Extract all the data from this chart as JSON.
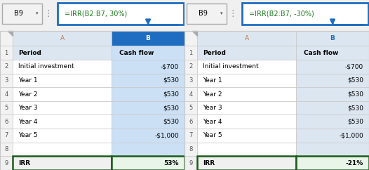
{
  "tables": [
    {
      "formula_cell": "B9",
      "formula": "=IRR(B2:B7, 30%)",
      "rows": [
        [
          "1",
          "Period",
          "Cash flow"
        ],
        [
          "2",
          "Initial investment",
          "-$700"
        ],
        [
          "3",
          "Year 1",
          "$530"
        ],
        [
          "4",
          "Year 2",
          "$530"
        ],
        [
          "5",
          "Year 3",
          "$530"
        ],
        [
          "6",
          "Year 4",
          "$530"
        ],
        [
          "7",
          "Year 5",
          "-$1,000"
        ],
        [
          "8",
          "",
          ""
        ],
        [
          "9",
          "IRR",
          "53%"
        ]
      ],
      "col_b_header_bg": "#1f6dc1",
      "col_b_header_fg": "#ffffff",
      "col_b_cell_bg": "#cce0f5",
      "col_a_header_fg": "#c0784a"
    },
    {
      "formula_cell": "B9",
      "formula": "=IRR(B2:B7, -30%)",
      "rows": [
        [
          "1",
          "Period",
          "Cash flow"
        ],
        [
          "2",
          "Initial investment",
          "-$700"
        ],
        [
          "3",
          "Year 1",
          "$530"
        ],
        [
          "4",
          "Year 2",
          "$530"
        ],
        [
          "5",
          "Year 3",
          "$530"
        ],
        [
          "6",
          "Year 4",
          "$530"
        ],
        [
          "7",
          "Year 5",
          "-$1,000"
        ],
        [
          "8",
          "",
          ""
        ],
        [
          "9",
          "IRR",
          "-21%"
        ]
      ],
      "col_b_header_bg": "#dce6f0",
      "col_b_header_fg": "#1f6dc1",
      "col_b_cell_bg": "#dce6f0",
      "col_a_header_fg": "#c0784a"
    }
  ],
  "bg_color": "#f0f0f0",
  "col_header_bg": "#dce6f0",
  "col_header_fg": "#c0784a",
  "row_header_bg": "#f2f2f2",
  "row_header_fg": "#555555",
  "header_row1_bg": "#dce6f0",
  "cell_bg": "#ffffff",
  "grid_color": "#c8c8c8",
  "formula_bar_bg": "#ffffff",
  "formula_bar_border": "#1f6dc1",
  "formula_bar_fg": "#1a7a1a",
  "formula_ref_bg": "#f2f2f2",
  "formula_ref_border": "#aaaaaa",
  "arrow_color": "#1f6dc1",
  "irr_border": "#1a5c1a",
  "irr_bg_a": "#f0f0f0",
  "irr_bg_b": "#e8f5e8",
  "font_size": 6.5
}
